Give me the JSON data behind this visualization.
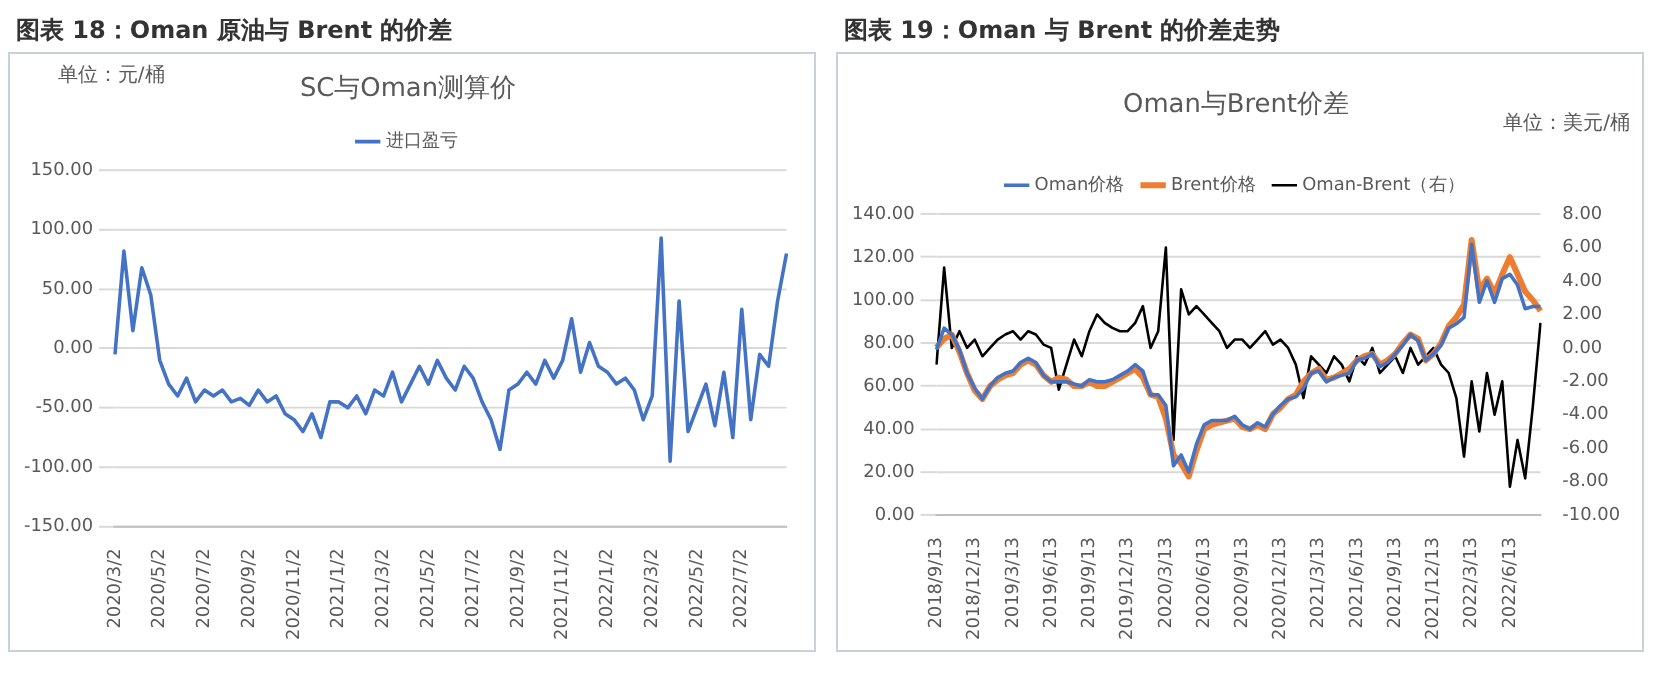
{
  "chart_data": [
    {
      "type": "line",
      "title": "图表 18：Oman 原油与 Brent 的价差",
      "subtitle": "SC与Oman测算价",
      "annotations": [
        "单位：元/桶"
      ],
      "categories": [
        "2020/3/2",
        null,
        null,
        null,
        null,
        "2020/5/2",
        null,
        null,
        null,
        null,
        "2020/7/2",
        null,
        null,
        null,
        null,
        "2020/9/2",
        null,
        null,
        null,
        null,
        "2020/11/2",
        null,
        null,
        null,
        null,
        "2021/1/2",
        null,
        null,
        null,
        null,
        "2021/3/2",
        null,
        null,
        null,
        null,
        "2021/5/2",
        null,
        null,
        null,
        null,
        "2021/7/2",
        null,
        null,
        null,
        null,
        "2021/9/2",
        null,
        null,
        null,
        null,
        "2021/11/2",
        null,
        null,
        null,
        null,
        "2022/1/2",
        null,
        null,
        null,
        null,
        "2022/3/2",
        null,
        null,
        null,
        null,
        "2022/5/2",
        null,
        null,
        null,
        null,
        "2022/7/2",
        null,
        null,
        null,
        null,
        null
      ],
      "series": [
        {
          "name": "进口盈亏",
          "color": "#4472c4",
          "values": [
            -5,
            82,
            15,
            68,
            45,
            -10,
            -30,
            -40,
            -25,
            -45,
            -35,
            -40,
            -35,
            -45,
            -42,
            -48,
            -35,
            -45,
            -40,
            -55,
            -60,
            -70,
            -55,
            -75,
            -45,
            -45,
            -50,
            -40,
            -55,
            -35,
            -40,
            -20,
            -45,
            -30,
            -15,
            -30,
            -10,
            -25,
            -35,
            -15,
            -25,
            -45,
            -60,
            -85,
            -35,
            -30,
            -20,
            -30,
            -10,
            -25,
            -10,
            25,
            -20,
            5,
            -15,
            -20,
            -30,
            -25,
            -35,
            -60,
            -40,
            93,
            -95,
            40,
            -70,
            -50,
            -30,
            -65,
            -20,
            -75,
            33,
            -60,
            -5,
            -15,
            40,
            80
          ]
        }
      ],
      "ylim": [
        -150,
        150
      ],
      "yticks": [
        {
          "value": -150,
          "label": "-150.00"
        },
        {
          "value": -100,
          "label": "-100.00"
        },
        {
          "value": -50,
          "label": "-50.00"
        },
        {
          "value": 0,
          "label": "0.00"
        },
        {
          "value": 50,
          "label": "50.00"
        },
        {
          "value": 100,
          "label": "100.00"
        },
        {
          "value": 150,
          "label": "150.00"
        }
      ],
      "grid": "y",
      "legend": "top",
      "marker": "none",
      "line_style": "solid"
    },
    {
      "type": "line",
      "title": "图表 19：Oman 与 Brent 的价差走势",
      "subtitle": "Oman与Brent价差",
      "annotations": [
        "单位：美元/桶"
      ],
      "categories": [
        "2018/9/13",
        null,
        null,
        null,
        null,
        "2018/12/13",
        null,
        null,
        null,
        null,
        "2019/3/13",
        null,
        null,
        null,
        null,
        "2019/6/13",
        null,
        null,
        null,
        null,
        "2019/9/13",
        null,
        null,
        null,
        null,
        "2019/12/13",
        null,
        null,
        null,
        null,
        "2020/3/13",
        null,
        null,
        null,
        null,
        "2020/6/13",
        null,
        null,
        null,
        null,
        "2020/9/13",
        null,
        null,
        null,
        null,
        "2020/12/13",
        null,
        null,
        null,
        null,
        "2021/3/13",
        null,
        null,
        null,
        null,
        "2021/6/13",
        null,
        null,
        null,
        null,
        "2021/9/13",
        null,
        null,
        null,
        null,
        "2021/12/13",
        null,
        null,
        null,
        null,
        "2022/3/13",
        null,
        null,
        null,
        null,
        "2022/6/13",
        null,
        null,
        null,
        null
      ],
      "series": [
        {
          "name": "Oman价格",
          "color": "#4472c4",
          "values": [
            77,
            87,
            84,
            77,
            66,
            59,
            54,
            60,
            64,
            66,
            67,
            71,
            73,
            71,
            65,
            62,
            62,
            62,
            61,
            60,
            63,
            62,
            62,
            63,
            65,
            67,
            70,
            67,
            56,
            56,
            51,
            23,
            28,
            20,
            33,
            42,
            44,
            44,
            44,
            46,
            42,
            40,
            43,
            41,
            47,
            51,
            54,
            55,
            59,
            66,
            67,
            62,
            64,
            65,
            66,
            72,
            73,
            75,
            69,
            71,
            75,
            79,
            84,
            81,
            72,
            75,
            79,
            87,
            89,
            92,
            126,
            99,
            109,
            99,
            110,
            112,
            107,
            96,
            97,
            97
          ]
        },
        {
          "name": "Brent价格",
          "color": "#ed7d31",
          "values": [
            78,
            82,
            84,
            76,
            66,
            58,
            54,
            60,
            63,
            65,
            66,
            70,
            72,
            70,
            65,
            62,
            64,
            63,
            60,
            60,
            62,
            60,
            60,
            62,
            64,
            66,
            68,
            64,
            56,
            55,
            45,
            28,
            24,
            18,
            30,
            40,
            42,
            43,
            44,
            45,
            41,
            40,
            42,
            40,
            47,
            50,
            54,
            56,
            62,
            66,
            68,
            63,
            64,
            66,
            68,
            72,
            74,
            75,
            70,
            72,
            75,
            80,
            84,
            82,
            72,
            75,
            80,
            88,
            92,
            98,
            128,
            104,
            110,
            103,
            112,
            120,
            112,
            104,
            100,
            95
          ]
        },
        {
          "name": "Oman-Brent（右）",
          "color": "#000000",
          "axis": "y2",
          "values": [
            -1,
            4.8,
            0,
            1,
            0,
            0.5,
            -0.5,
            0,
            0.5,
            0.8,
            1,
            0.5,
            1,
            0.8,
            0.2,
            0,
            -2.5,
            -1,
            0.5,
            -0.5,
            1,
            2,
            1.5,
            1.2,
            1,
            1,
            1.5,
            2.5,
            0,
            1,
            6,
            -5.5,
            3.5,
            2,
            2.5,
            2,
            1.5,
            1,
            0,
            0.5,
            0.5,
            0,
            0.5,
            1,
            0.2,
            0.5,
            0,
            -1,
            -3,
            -0.5,
            -1,
            -1.5,
            -0.5,
            -1,
            -2,
            -0.5,
            -1,
            0,
            -1.5,
            -1,
            -0.5,
            -1.5,
            0,
            -1,
            -0.5,
            0,
            -1,
            -1.5,
            -3,
            -6.5,
            -2,
            -5,
            -1.5,
            -4,
            -2,
            -8.3,
            -5.5,
            -7.8,
            -3.5,
            1.5
          ]
        }
      ],
      "ylim": [
        0,
        140
      ],
      "yticks": [
        {
          "value": 0,
          "label": "0.00"
        },
        {
          "value": 20,
          "label": "20.00"
        },
        {
          "value": 40,
          "label": "40.00"
        },
        {
          "value": 60,
          "label": "60.00"
        },
        {
          "value": 80,
          "label": "80.00"
        },
        {
          "value": 100,
          "label": "100.00"
        },
        {
          "value": 120,
          "label": "120.00"
        },
        {
          "value": 140,
          "label": "140.00"
        }
      ],
      "y2lim": [
        -10,
        8
      ],
      "y2ticks": [
        {
          "value": -10,
          "label": "-10.00"
        },
        {
          "value": -8,
          "label": "-8.00"
        },
        {
          "value": -6,
          "label": "-6.00"
        },
        {
          "value": -4,
          "label": "-4.00"
        },
        {
          "value": -2,
          "label": "-2.00"
        },
        {
          "value": 0,
          "label": "0.00"
        },
        {
          "value": 2,
          "label": "2.00"
        },
        {
          "value": 4,
          "label": "4.00"
        },
        {
          "value": 6,
          "label": "6.00"
        },
        {
          "value": 8,
          "label": "8.00"
        }
      ],
      "grid": "y",
      "legend": "top",
      "marker": "none",
      "line_style": "solid"
    }
  ]
}
